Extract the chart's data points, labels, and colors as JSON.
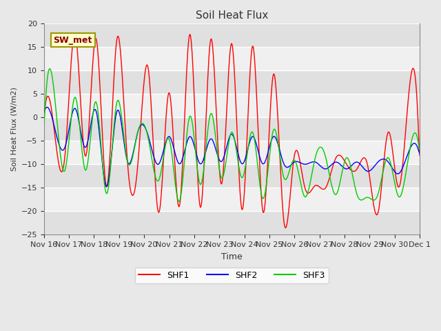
{
  "title": "Soil Heat Flux",
  "ylabel": "Soil Heat Flux (W/m2)",
  "xlabel": "Time",
  "ylim": [
    -25,
    20
  ],
  "yticks": [
    -25,
    -20,
    -15,
    -10,
    -5,
    0,
    5,
    10,
    15,
    20
  ],
  "xtick_labels": [
    "Nov 16",
    "Nov 17",
    "Nov 18",
    "Nov 19",
    "Nov 20",
    "Nov 21",
    "Nov 22",
    "Nov 23",
    "Nov 24",
    "Nov 25",
    "Nov 26",
    "Nov 27",
    "Nov 28",
    "Nov 29",
    "Nov 30",
    "Dec 1"
  ],
  "shf1_color": "#ff0000",
  "shf2_color": "#0000ff",
  "shf3_color": "#00cc00",
  "annotation_text": "SW_met",
  "annotation_bg": "#ffffcc",
  "annotation_edge": "#999900",
  "fig_bg": "#e8e8e8",
  "plot_bg": "#f0f0f0",
  "grid_color": "#ffffff",
  "legend_entries": [
    "SHF1",
    "SHF2",
    "SHF3"
  ],
  "shf1_key_points": [
    0.0,
    -3.0,
    -8.5,
    18.0,
    -8.5,
    17.0,
    -15.0,
    17.0,
    -9.5,
    -10.0,
    10.5,
    -20.5,
    5.5,
    -19.0,
    18.0,
    -19.5,
    17.0,
    -14.5,
    16.0,
    -20.0,
    15.5,
    -20.5,
    9.5,
    -22.5,
    -8.0,
    -15.0,
    -14.5,
    -15.0,
    -8.5,
    -10.0,
    -11.0,
    -10.0,
    -20.5,
    -3.0,
    -15.0,
    6.0,
    -10.0
  ],
  "shf2_key_points": [
    1.0,
    -2.0,
    -6.5,
    2.0,
    -6.5,
    1.5,
    -15.0,
    1.5,
    -9.5,
    -3.0,
    -4.0,
    -10.0,
    -4.0,
    -10.0,
    -4.0,
    -10.0,
    -4.5,
    -9.5,
    -3.5,
    -10.0,
    -4.0,
    -10.0,
    -4.0,
    -10.0,
    -9.5,
    -10.0,
    -9.5,
    -11.0,
    -9.5,
    -11.0,
    -9.5,
    -11.5,
    -9.5,
    -9.5,
    -12.0,
    -7.0,
    -8.0
  ],
  "shf3_key_points": [
    -3.0,
    5.0,
    -11.5,
    4.5,
    -11.5,
    3.5,
    -16.5,
    3.5,
    -9.5,
    -3.0,
    -4.5,
    -13.5,
    -4.5,
    -18.0,
    0.5,
    -14.5,
    1.0,
    -13.0,
    -3.0,
    -13.0,
    -3.0,
    -17.5,
    -2.5,
    -13.0,
    -9.0,
    -17.0,
    -8.5,
    -8.5,
    -16.5,
    -8.5,
    -16.5,
    -17.0,
    -16.5,
    -8.5,
    -17.0,
    -7.5,
    -7.5
  ]
}
